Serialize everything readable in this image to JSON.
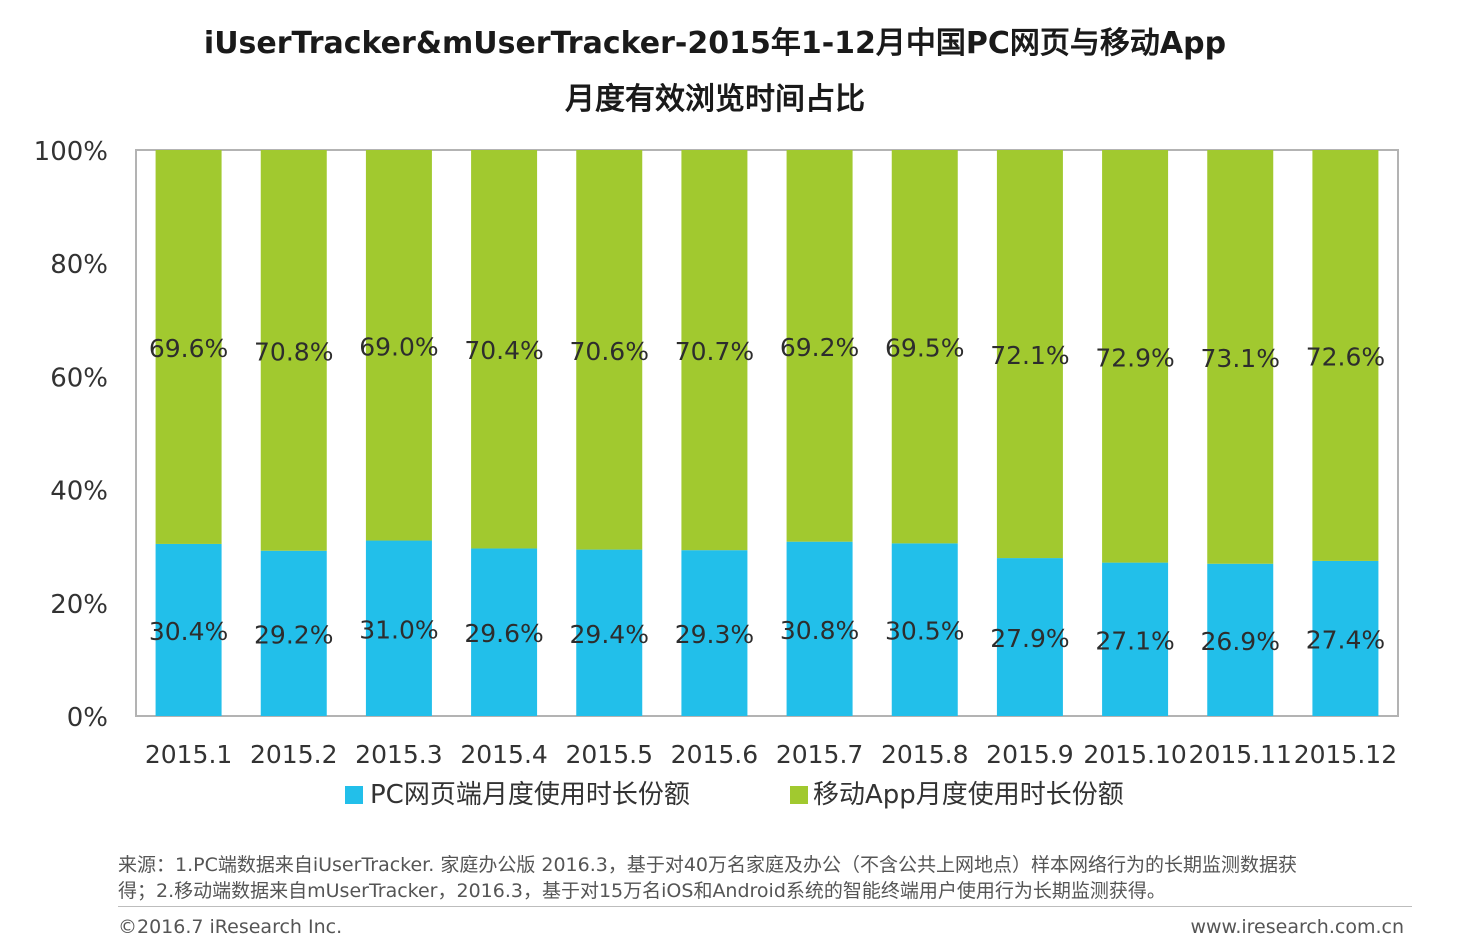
{
  "header": {
    "title_line1": "iUserTracker&mUserTracker-2015年1-12月中国PC网页与移动App",
    "title_line2": "月度有效浏览时间占比"
  },
  "chart_data": {
    "type": "bar",
    "stacked": true,
    "categories": [
      "2015.1",
      "2015.2",
      "2015.3",
      "2015.4",
      "2015.5",
      "2015.6",
      "2015.7",
      "2015.8",
      "2015.9",
      "2015.10",
      "2015.11",
      "2015.12"
    ],
    "series": [
      {
        "name": "PC网页端月度使用时长份额",
        "color": "#22bfea",
        "values": [
          30.4,
          29.2,
          31.0,
          29.6,
          29.4,
          29.3,
          30.8,
          30.5,
          27.9,
          27.1,
          26.9,
          27.4
        ],
        "labels": [
          "30.4%",
          "29.2%",
          "31.0%",
          "29.6%",
          "29.4%",
          "29.3%",
          "30.8%",
          "30.5%",
          "27.9%",
          "27.1%",
          "26.9%",
          "27.4%"
        ]
      },
      {
        "name": "移动App月度使用时长份额",
        "color": "#a1c92f",
        "values": [
          69.6,
          70.8,
          69.0,
          70.4,
          70.6,
          70.7,
          69.2,
          69.5,
          72.1,
          72.9,
          73.1,
          72.6
        ],
        "labels": [
          "69.6%",
          "70.8%",
          "69.0%",
          "70.4%",
          "70.6%",
          "70.7%",
          "69.2%",
          "69.5%",
          "72.1%",
          "72.9%",
          "73.1%",
          "72.6%"
        ]
      }
    ],
    "ylim": [
      0,
      100
    ],
    "yticks": [
      "0%",
      "20%",
      "40%",
      "60%",
      "80%",
      "100%"
    ],
    "ytick_values": [
      0,
      20,
      40,
      60,
      80,
      100
    ],
    "legend_position": "bottom"
  },
  "footer": {
    "source_line1": "来源：1.PC端数据来自iUserTracker. 家庭办公版 2016.3，基于对40万名家庭及办公（不含公共上网地点）样本网络行为的长期监测数据获",
    "source_line2": "得；2.移动端数据来自mUserTracker，2016.3，基于对15万名iOS和Android系统的智能终端用户使用行为长期监测获得。",
    "copyright": "©2016.7 iResearch Inc.",
    "website": "www.iresearch.com.cn"
  }
}
